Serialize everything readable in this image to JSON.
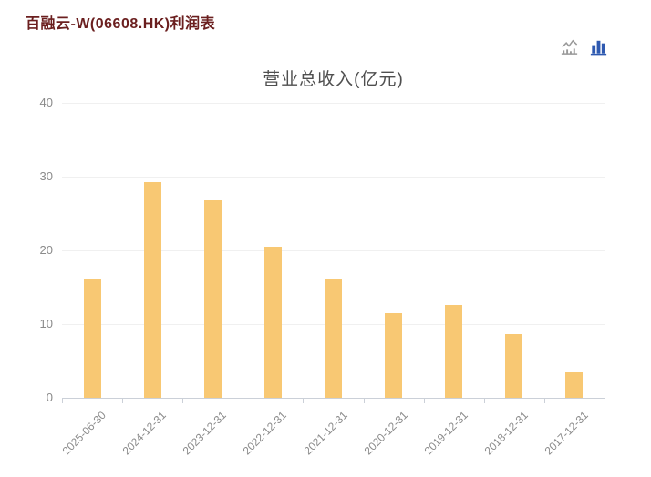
{
  "header": {
    "title": "百融云-W(06608.HK)利润表"
  },
  "toolbar": {
    "icons": [
      {
        "name": "line-chart-icon",
        "type": "line",
        "active": false
      },
      {
        "name": "bar-chart-icon",
        "type": "bar",
        "active": true
      }
    ],
    "active_type": "bar"
  },
  "colors": {
    "bar": "#F8C873",
    "page_title_text": "#6B1F1F",
    "chart_title_text": "#4F4F4F",
    "axis_label": "#8B8B8B",
    "grid_line": "#F0F0F0",
    "axis_line": "#CBD0D8",
    "icon_active": "#2E59B0",
    "icon_inactive": "#999999"
  },
  "chart_data": {
    "type": "bar",
    "title": "营业总收入(亿元)",
    "categories": [
      "2025-06-30",
      "2024-12-31",
      "2023-12-31",
      "2022-12-31",
      "2021-12-31",
      "2020-12-31",
      "2019-12-31",
      "2018-12-31",
      "2017-12-31"
    ],
    "values": [
      16.0,
      29.3,
      26.8,
      20.5,
      16.2,
      11.5,
      12.6,
      8.6,
      3.5
    ],
    "xlabel": "",
    "ylabel": "",
    "ylim": [
      0,
      40
    ],
    "yticks": [
      0,
      10,
      20,
      30,
      40
    ],
    "grid": true,
    "legend": false,
    "bar_color": "#F8C873"
  }
}
